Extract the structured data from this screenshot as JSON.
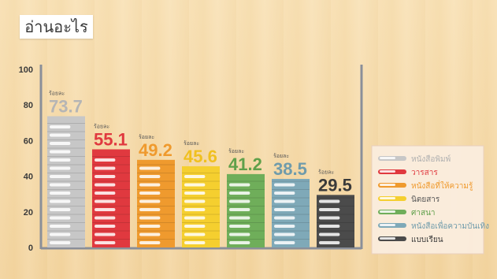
{
  "title": "อ่านอะไร",
  "colors": {
    "axis": "#8a8f99",
    "legend_bg": "#fbeee0",
    "legend_border": "#e9cfc0"
  },
  "chart_data": {
    "type": "bar",
    "ylim": [
      0,
      100
    ],
    "yticks": [
      0,
      20,
      40,
      60,
      80,
      100
    ],
    "value_prefix": "ร้อยละ",
    "categories": [
      "หนังสือพิมพ์",
      "วารสาร",
      "หนังสือที่ให้ความรู้",
      "นิตยสาร",
      "ศาสนา",
      "หนังสือเพื่อความบันเทิง",
      "แบบเรียน"
    ],
    "values": [
      73.7,
      55.1,
      49.2,
      45.6,
      41.2,
      38.5,
      29.5
    ],
    "value_labels": [
      "73.7",
      "55.1",
      "49.2",
      "45.6",
      "41.2",
      "38.5",
      "29.5"
    ],
    "series_colors": [
      "#c7c7c7",
      "#e0393f",
      "#ef9a2e",
      "#f5cf2f",
      "#6fae5a",
      "#7fa9b8",
      "#4b4b4b"
    ],
    "label_colors": [
      "#b5b5b5",
      "#e0393f",
      "#ef9a2e",
      "#f0c020",
      "#5fa04a",
      "#6f9bab",
      "#3a3a3a"
    ],
    "legend_text_colors": [
      "#b0b0b0",
      "#e0393f",
      "#ef9a2e",
      "#555555",
      "#5fa04a",
      "#6f9bab",
      "#3a3a3a"
    ],
    "legend_placement": "right",
    "grid": false
  }
}
